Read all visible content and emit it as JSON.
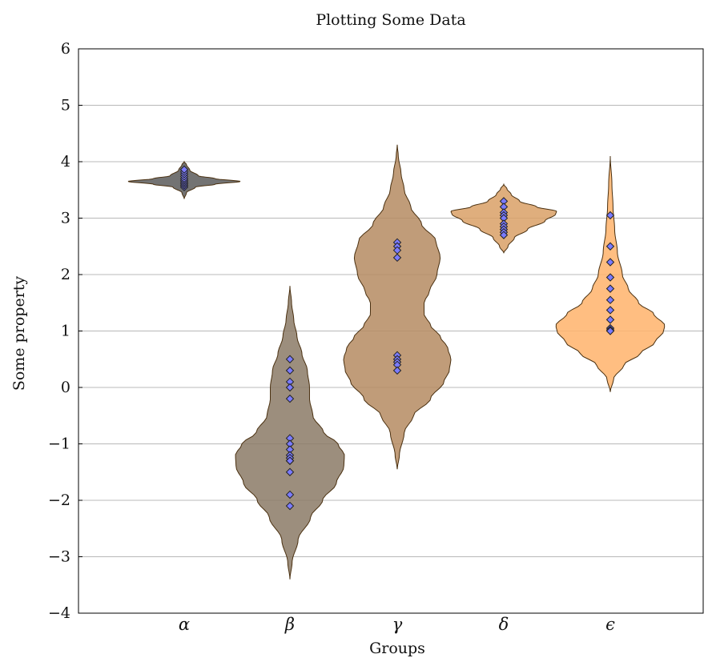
{
  "chart_data": {
    "type": "violin",
    "title": "Plotting Some Data",
    "xlabel": "Groups",
    "ylabel": "Some property",
    "ylim": [
      -4,
      6
    ],
    "yticks": [
      -4,
      -3,
      -2,
      -1,
      0,
      1,
      2,
      3,
      4,
      5,
      6
    ],
    "ytick_labels": [
      "−4",
      "−3",
      "−2",
      "−1",
      "0",
      "1",
      "2",
      "3",
      "4",
      "5",
      "6"
    ],
    "grid": "horizontal",
    "categories": [
      "α",
      "β",
      "γ",
      "δ",
      "ϵ"
    ],
    "colors": {
      "violins": [
        "#5a5a5a",
        "#8b7a66",
        "#b58b62",
        "#d9a066",
        "#ffb36b"
      ],
      "violin_stroke": "#4a3010",
      "points": "#7b7bff",
      "point_stroke": "#222222",
      "grid": "#b8b8b8"
    },
    "groups": [
      {
        "label": "α",
        "violin_max_width": 1.0,
        "profile": [
          [
            3.34,
            0.0
          ],
          [
            3.45,
            0.04
          ],
          [
            3.55,
            0.2
          ],
          [
            3.6,
            0.55
          ],
          [
            3.65,
            1.0
          ],
          [
            3.7,
            0.55
          ],
          [
            3.75,
            0.25
          ],
          [
            3.85,
            0.1
          ],
          [
            3.95,
            0.04
          ],
          [
            4.0,
            0.0
          ]
        ],
        "points": [
          3.55,
          3.58,
          3.61,
          3.64,
          3.67,
          3.7,
          3.74,
          3.78,
          3.82,
          3.86
        ]
      },
      {
        "label": "β",
        "violin_max_width": 1.0,
        "profile": [
          [
            -3.4,
            0.0
          ],
          [
            -3.1,
            0.04
          ],
          [
            -2.7,
            0.15
          ],
          [
            -2.3,
            0.38
          ],
          [
            -2.0,
            0.6
          ],
          [
            -1.7,
            0.85
          ],
          [
            -1.4,
            0.99
          ],
          [
            -1.2,
            1.0
          ],
          [
            -1.0,
            0.88
          ],
          [
            -0.8,
            0.62
          ],
          [
            -0.5,
            0.42
          ],
          [
            -0.2,
            0.36
          ],
          [
            0.0,
            0.36
          ],
          [
            0.3,
            0.32
          ],
          [
            0.6,
            0.22
          ],
          [
            0.9,
            0.13
          ],
          [
            1.2,
            0.07
          ],
          [
            1.5,
            0.03
          ],
          [
            1.8,
            0.0
          ]
        ],
        "points": [
          0.5,
          0.3,
          0.1,
          0.0,
          -0.2,
          -0.9,
          -1.0,
          -1.1,
          -1.2,
          -1.25,
          -1.3,
          -1.3,
          -1.5,
          -1.9,
          -2.1
        ]
      },
      {
        "label": "γ",
        "violin_max_width": 1.0,
        "profile": [
          [
            -1.45,
            0.0
          ],
          [
            -1.2,
            0.04
          ],
          [
            -0.8,
            0.13
          ],
          [
            -0.5,
            0.3
          ],
          [
            -0.2,
            0.62
          ],
          [
            0.1,
            0.87
          ],
          [
            0.3,
            0.97
          ],
          [
            0.5,
            1.0
          ],
          [
            0.7,
            0.94
          ],
          [
            0.9,
            0.8
          ],
          [
            1.1,
            0.62
          ],
          [
            1.3,
            0.5
          ],
          [
            1.5,
            0.5
          ],
          [
            1.7,
            0.6
          ],
          [
            2.0,
            0.74
          ],
          [
            2.3,
            0.8
          ],
          [
            2.6,
            0.72
          ],
          [
            2.9,
            0.45
          ],
          [
            3.2,
            0.25
          ],
          [
            3.5,
            0.13
          ],
          [
            3.8,
            0.07
          ],
          [
            4.1,
            0.02
          ],
          [
            4.3,
            0.0
          ]
        ],
        "points": [
          2.57,
          2.5,
          2.43,
          2.3,
          0.57,
          0.5,
          0.45,
          0.4,
          0.3
        ]
      },
      {
        "label": "δ",
        "violin_max_width": 1.0,
        "profile": [
          [
            2.38,
            0.0
          ],
          [
            2.5,
            0.08
          ],
          [
            2.65,
            0.2
          ],
          [
            2.8,
            0.45
          ],
          [
            2.95,
            0.78
          ],
          [
            3.07,
            0.98
          ],
          [
            3.12,
            1.0
          ],
          [
            3.2,
            0.62
          ],
          [
            3.3,
            0.3
          ],
          [
            3.42,
            0.14
          ],
          [
            3.52,
            0.06
          ],
          [
            3.6,
            0.0
          ]
        ],
        "points": [
          3.3,
          3.2,
          3.1,
          3.05,
          3.0,
          2.9,
          2.85,
          2.8,
          2.75,
          2.7
        ]
      },
      {
        "label": "ϵ",
        "violin_max_width": 1.0,
        "profile": [
          [
            -0.08,
            0.0
          ],
          [
            0.15,
            0.06
          ],
          [
            0.4,
            0.25
          ],
          [
            0.6,
            0.55
          ],
          [
            0.8,
            0.82
          ],
          [
            1.0,
            0.98
          ],
          [
            1.1,
            1.0
          ],
          [
            1.3,
            0.8
          ],
          [
            1.5,
            0.52
          ],
          [
            1.75,
            0.33
          ],
          [
            2.0,
            0.22
          ],
          [
            2.4,
            0.13
          ],
          [
            2.8,
            0.08
          ],
          [
            3.2,
            0.05
          ],
          [
            3.6,
            0.03
          ],
          [
            4.1,
            0.0
          ]
        ],
        "points": [
          3.05,
          2.5,
          2.22,
          1.95,
          1.75,
          1.55,
          1.37,
          1.2,
          1.05,
          1.02,
          1.0
        ]
      }
    ]
  }
}
